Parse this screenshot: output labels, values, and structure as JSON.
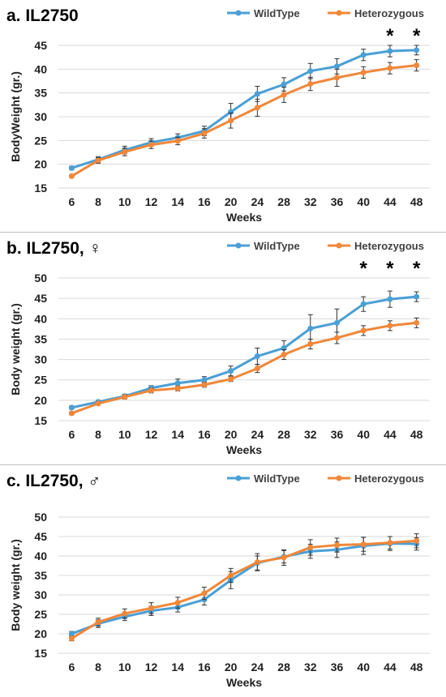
{
  "colors": {
    "wildtype": "#4a9fd5",
    "heterozygous": "#f0873a",
    "grid": "#d9d9d9",
    "text": "#000000"
  },
  "chart_data": [
    {
      "type": "line",
      "title": "a. IL2750",
      "xlabel": "Weeks",
      "ylabel": "BodyWeight (gr.)",
      "categories": [
        "6",
        "8",
        "10",
        "12",
        "14",
        "16",
        "20",
        "24",
        "28",
        "32",
        "36",
        "40",
        "44",
        "48"
      ],
      "ylim": [
        15,
        45
      ],
      "yticks": [
        15,
        20,
        25,
        30,
        35,
        40,
        45
      ],
      "grid": "horizontal",
      "legend": "top-right",
      "annotations": [
        {
          "category": "44",
          "text": "*"
        },
        {
          "category": "48",
          "text": "*"
        }
      ],
      "series": [
        {
          "name": "WildType",
          "color": "#4a9fd5",
          "values": [
            19.2,
            21.0,
            23.0,
            24.6,
            25.6,
            27.0,
            31.0,
            34.8,
            36.8,
            39.6,
            40.6,
            43.0,
            43.8,
            44.0
          ],
          "errors": [
            0.4,
            0.6,
            0.8,
            0.8,
            0.8,
            1.0,
            1.8,
            1.6,
            1.4,
            1.6,
            1.6,
            1.2,
            1.2,
            1.0
          ]
        },
        {
          "name": "Heterozygous",
          "color": "#f0873a",
          "values": [
            17.5,
            20.8,
            22.6,
            24.1,
            24.9,
            26.5,
            29.2,
            31.9,
            34.6,
            36.9,
            38.2,
            39.3,
            40.2,
            40.8
          ],
          "errors": [
            0.3,
            0.6,
            0.8,
            0.8,
            0.8,
            1.0,
            1.6,
            1.8,
            1.6,
            1.4,
            1.8,
            1.2,
            1.2,
            1.2
          ]
        }
      ]
    },
    {
      "type": "line",
      "title": "b. IL2750, ♀",
      "xlabel": "Weeks",
      "ylabel": "Body weight (gr.)",
      "categories": [
        "6",
        "8",
        "10",
        "12",
        "14",
        "16",
        "20",
        "24",
        "28",
        "32",
        "36",
        "40",
        "44",
        "48"
      ],
      "ylim": [
        15,
        50
      ],
      "yticks": [
        15,
        20,
        25,
        30,
        35,
        40,
        45,
        50
      ],
      "grid": "horizontal",
      "legend": "top-right",
      "annotations": [
        {
          "category": "40",
          "text": "*"
        },
        {
          "category": "44",
          "text": "*"
        },
        {
          "category": "48",
          "text": "*"
        }
      ],
      "series": [
        {
          "name": "WildType",
          "color": "#4a9fd5",
          "values": [
            18.2,
            19.6,
            21.0,
            23.0,
            24.2,
            25.0,
            27.2,
            30.8,
            32.8,
            37.6,
            39.0,
            43.6,
            44.8,
            45.4
          ],
          "errors": [
            0.4,
            0.4,
            0.5,
            0.6,
            1.0,
            0.8,
            1.2,
            2.0,
            1.8,
            3.4,
            3.4,
            1.8,
            2.0,
            1.2
          ]
        },
        {
          "name": "Heterozygous",
          "color": "#f0873a",
          "values": [
            16.8,
            19.2,
            20.8,
            22.4,
            22.9,
            23.8,
            25.2,
            27.8,
            31.2,
            33.8,
            35.3,
            37.1,
            38.3,
            39.0
          ],
          "errors": [
            0.4,
            0.4,
            0.5,
            0.6,
            0.6,
            0.6,
            0.6,
            1.0,
            1.2,
            1.2,
            1.4,
            1.2,
            1.2,
            1.2
          ]
        }
      ]
    },
    {
      "type": "line",
      "title": "c. IL2750, ♂",
      "xlabel": "Weeks",
      "ylabel": "Body weight (gr.)",
      "categories": [
        "6",
        "8",
        "10",
        "12",
        "14",
        "16",
        "20",
        "24",
        "28",
        "32",
        "36",
        "40",
        "44",
        "48"
      ],
      "ylim": [
        15,
        50
      ],
      "yticks": [
        15,
        20,
        25,
        30,
        35,
        40,
        45,
        50
      ],
      "grid": "horizontal",
      "legend": "top-right",
      "annotations": [],
      "series": [
        {
          "name": "WildType",
          "color": "#4a9fd5",
          "values": [
            20.0,
            22.6,
            24.4,
            25.9,
            26.8,
            28.8,
            33.8,
            38.2,
            39.8,
            41.2,
            41.6,
            42.6,
            43.2,
            43.1
          ],
          "errors": [
            0.6,
            1.0,
            1.0,
            1.2,
            1.2,
            1.4,
            2.2,
            1.8,
            1.6,
            1.8,
            2.0,
            2.2,
            1.8,
            1.6
          ]
        },
        {
          "name": "Heterozygous",
          "color": "#f0873a",
          "values": [
            18.8,
            23.0,
            25.2,
            26.6,
            28.0,
            30.4,
            35.0,
            38.4,
            39.6,
            42.2,
            42.8,
            43.0,
            43.4,
            43.9
          ],
          "errors": [
            0.6,
            1.0,
            1.2,
            1.4,
            1.4,
            1.6,
            1.8,
            2.2,
            2.0,
            2.0,
            1.8,
            1.8,
            1.6,
            1.8
          ]
        }
      ]
    }
  ]
}
